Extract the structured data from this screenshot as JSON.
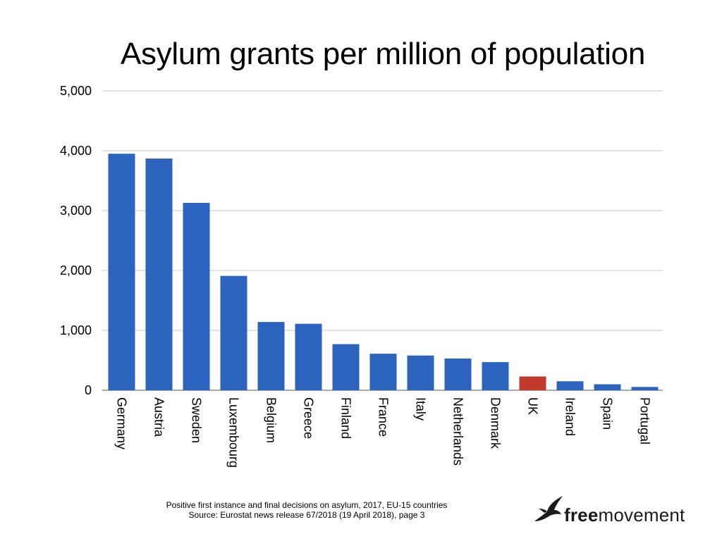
{
  "chart_data": {
    "type": "bar",
    "title": "Asylum grants per million of population",
    "categories": [
      "Germany",
      "Austria",
      "Sweden",
      "Luxembourg",
      "Belgium",
      "Greece",
      "Finland",
      "France",
      "Italy",
      "Netherlands",
      "Denmark",
      "UK",
      "Ireland",
      "Spain",
      "Portugal"
    ],
    "values": [
      3950,
      3870,
      3130,
      1910,
      1140,
      1110,
      770,
      610,
      580,
      530,
      470,
      230,
      150,
      100,
      55
    ],
    "ylim": [
      0,
      5000
    ],
    "yticks": [
      0,
      1000,
      2000,
      3000,
      4000,
      5000
    ],
    "ytick_labels": [
      "0",
      "1,000",
      "2,000",
      "3,000",
      "4,000",
      "5,000"
    ],
    "grid": true,
    "colors": {
      "default": "#2b63bf",
      "highlight": "#c0392b",
      "grid": "#c8c8c8"
    },
    "highlight_category": "UK"
  },
  "footnote": {
    "line1": "Positive first instance and final decisions on asylum, 2017, EU-15 countries",
    "line2": "Source: Eurostat news release 67/2018 (19 April 2018), page 3"
  },
  "logo": {
    "bold": "free",
    "regular": "movement",
    "icon": "bird-icon"
  }
}
